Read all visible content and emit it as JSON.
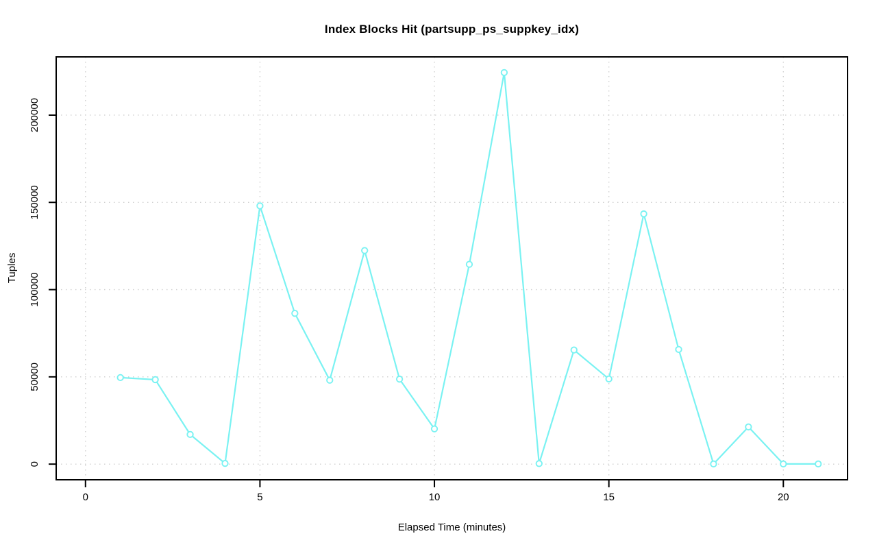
{
  "chart_data": {
    "type": "line",
    "title": "Index Blocks Hit (partsupp_ps_suppkey_idx)",
    "xlabel": "Elapsed Time (minutes)",
    "ylabel": "Tuples",
    "x": [
      1,
      2,
      3,
      4,
      5,
      6,
      7,
      8,
      9,
      10,
      11,
      12,
      13,
      14,
      15,
      16,
      17,
      18,
      19,
      20,
      21
    ],
    "values": [
      49600,
      48400,
      17000,
      400,
      148000,
      86400,
      48100,
      122400,
      48700,
      20200,
      114500,
      224400,
      300,
      65400,
      48800,
      143400,
      65700,
      100,
      21300,
      100,
      100
    ],
    "x_ticks": [
      0,
      5,
      10,
      15,
      20
    ],
    "y_ticks": [
      0,
      50000,
      100000,
      150000,
      200000
    ],
    "xlim": [
      0,
      21
    ],
    "ylim": [
      0,
      224400
    ],
    "grid": true,
    "legend": "none",
    "marker": "open-circle",
    "line_color": "#7af2f2",
    "grid_color": "#d0d0d0",
    "axis_color": "#000000",
    "background_color": "#ffffff"
  }
}
